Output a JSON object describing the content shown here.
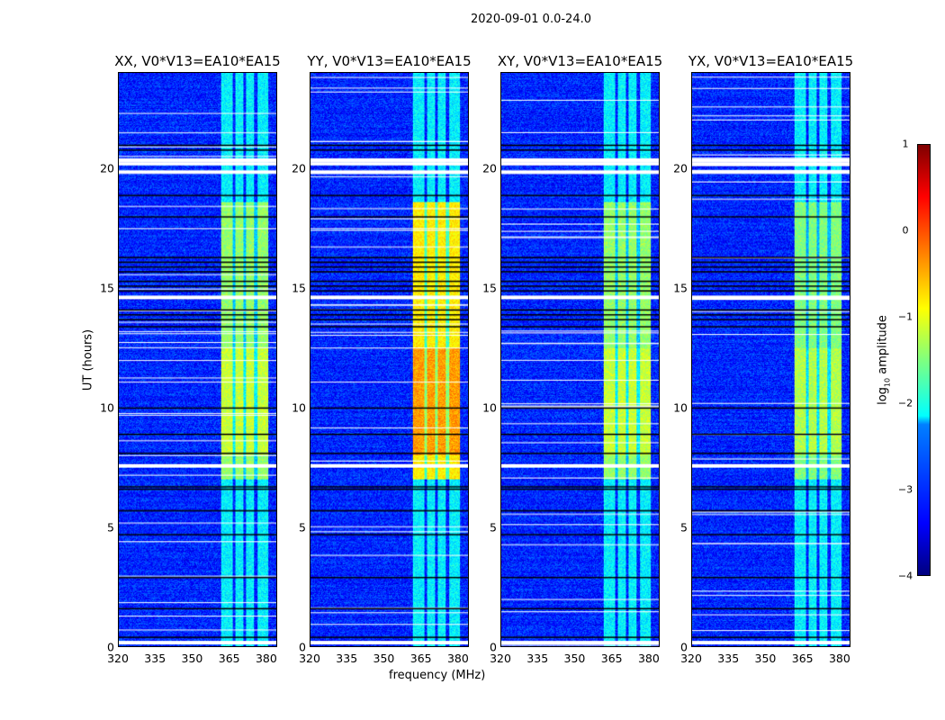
{
  "chart_data": {
    "type": "heatmap",
    "title": "2020-09-01 0.0-24.0",
    "xlabel": "frequency (MHz)",
    "ylabel": "UT (hours)",
    "xlim": [
      320,
      384.4
    ],
    "ylim": [
      0,
      24
    ],
    "xticks": [
      "320",
      "335",
      "350",
      "365",
      "380"
    ],
    "yticks": [
      "0",
      "5",
      "10",
      "15",
      "20"
    ],
    "xtick_values": [
      320,
      335,
      350,
      365,
      380
    ],
    "ytick_values": [
      0,
      5,
      10,
      15,
      20
    ],
    "panels": [
      {
        "title": "XX, V0*V13=EA10*EA15",
        "band_peak": -1.0
      },
      {
        "title": "YY, V0*V13=EA10*EA15",
        "band_peak": -0.4
      },
      {
        "title": "XY, V0*V13=EA10*EA15",
        "band_peak": -1.0
      },
      {
        "title": "YX, V0*V13=EA10*EA15",
        "band_peak": -1.1
      }
    ],
    "background_level": -3.2,
    "rfi_band_mhz": [
      361.5,
      381
    ],
    "strong_interval_hours": [
      7,
      18.6
    ],
    "flagged_hours": [
      0.15,
      7.55,
      14.6,
      19.85,
      20.2,
      20.35
    ],
    "dark_hours": [
      0.4,
      1.6,
      2.9,
      4.7,
      5.7,
      6.6,
      6.7,
      8.1,
      8.9,
      10.0,
      13.4,
      13.7,
      13.9,
      14.1,
      14.9,
      15.1,
      15.3,
      15.7,
      15.9,
      16.1,
      16.3,
      18.0,
      18.9,
      20.8,
      21.0
    ],
    "colorbar": {
      "label": "log10 amplitude",
      "label_main": "log",
      "label_sub": "10",
      "label_rest": " amplitude",
      "range": [
        -4,
        1
      ],
      "ticks": [
        "1",
        "0",
        "−1",
        "−2",
        "−3",
        "−4"
      ],
      "tick_values": [
        1,
        0,
        -1,
        -2,
        -3,
        -4
      ],
      "colormap": "jet"
    }
  }
}
